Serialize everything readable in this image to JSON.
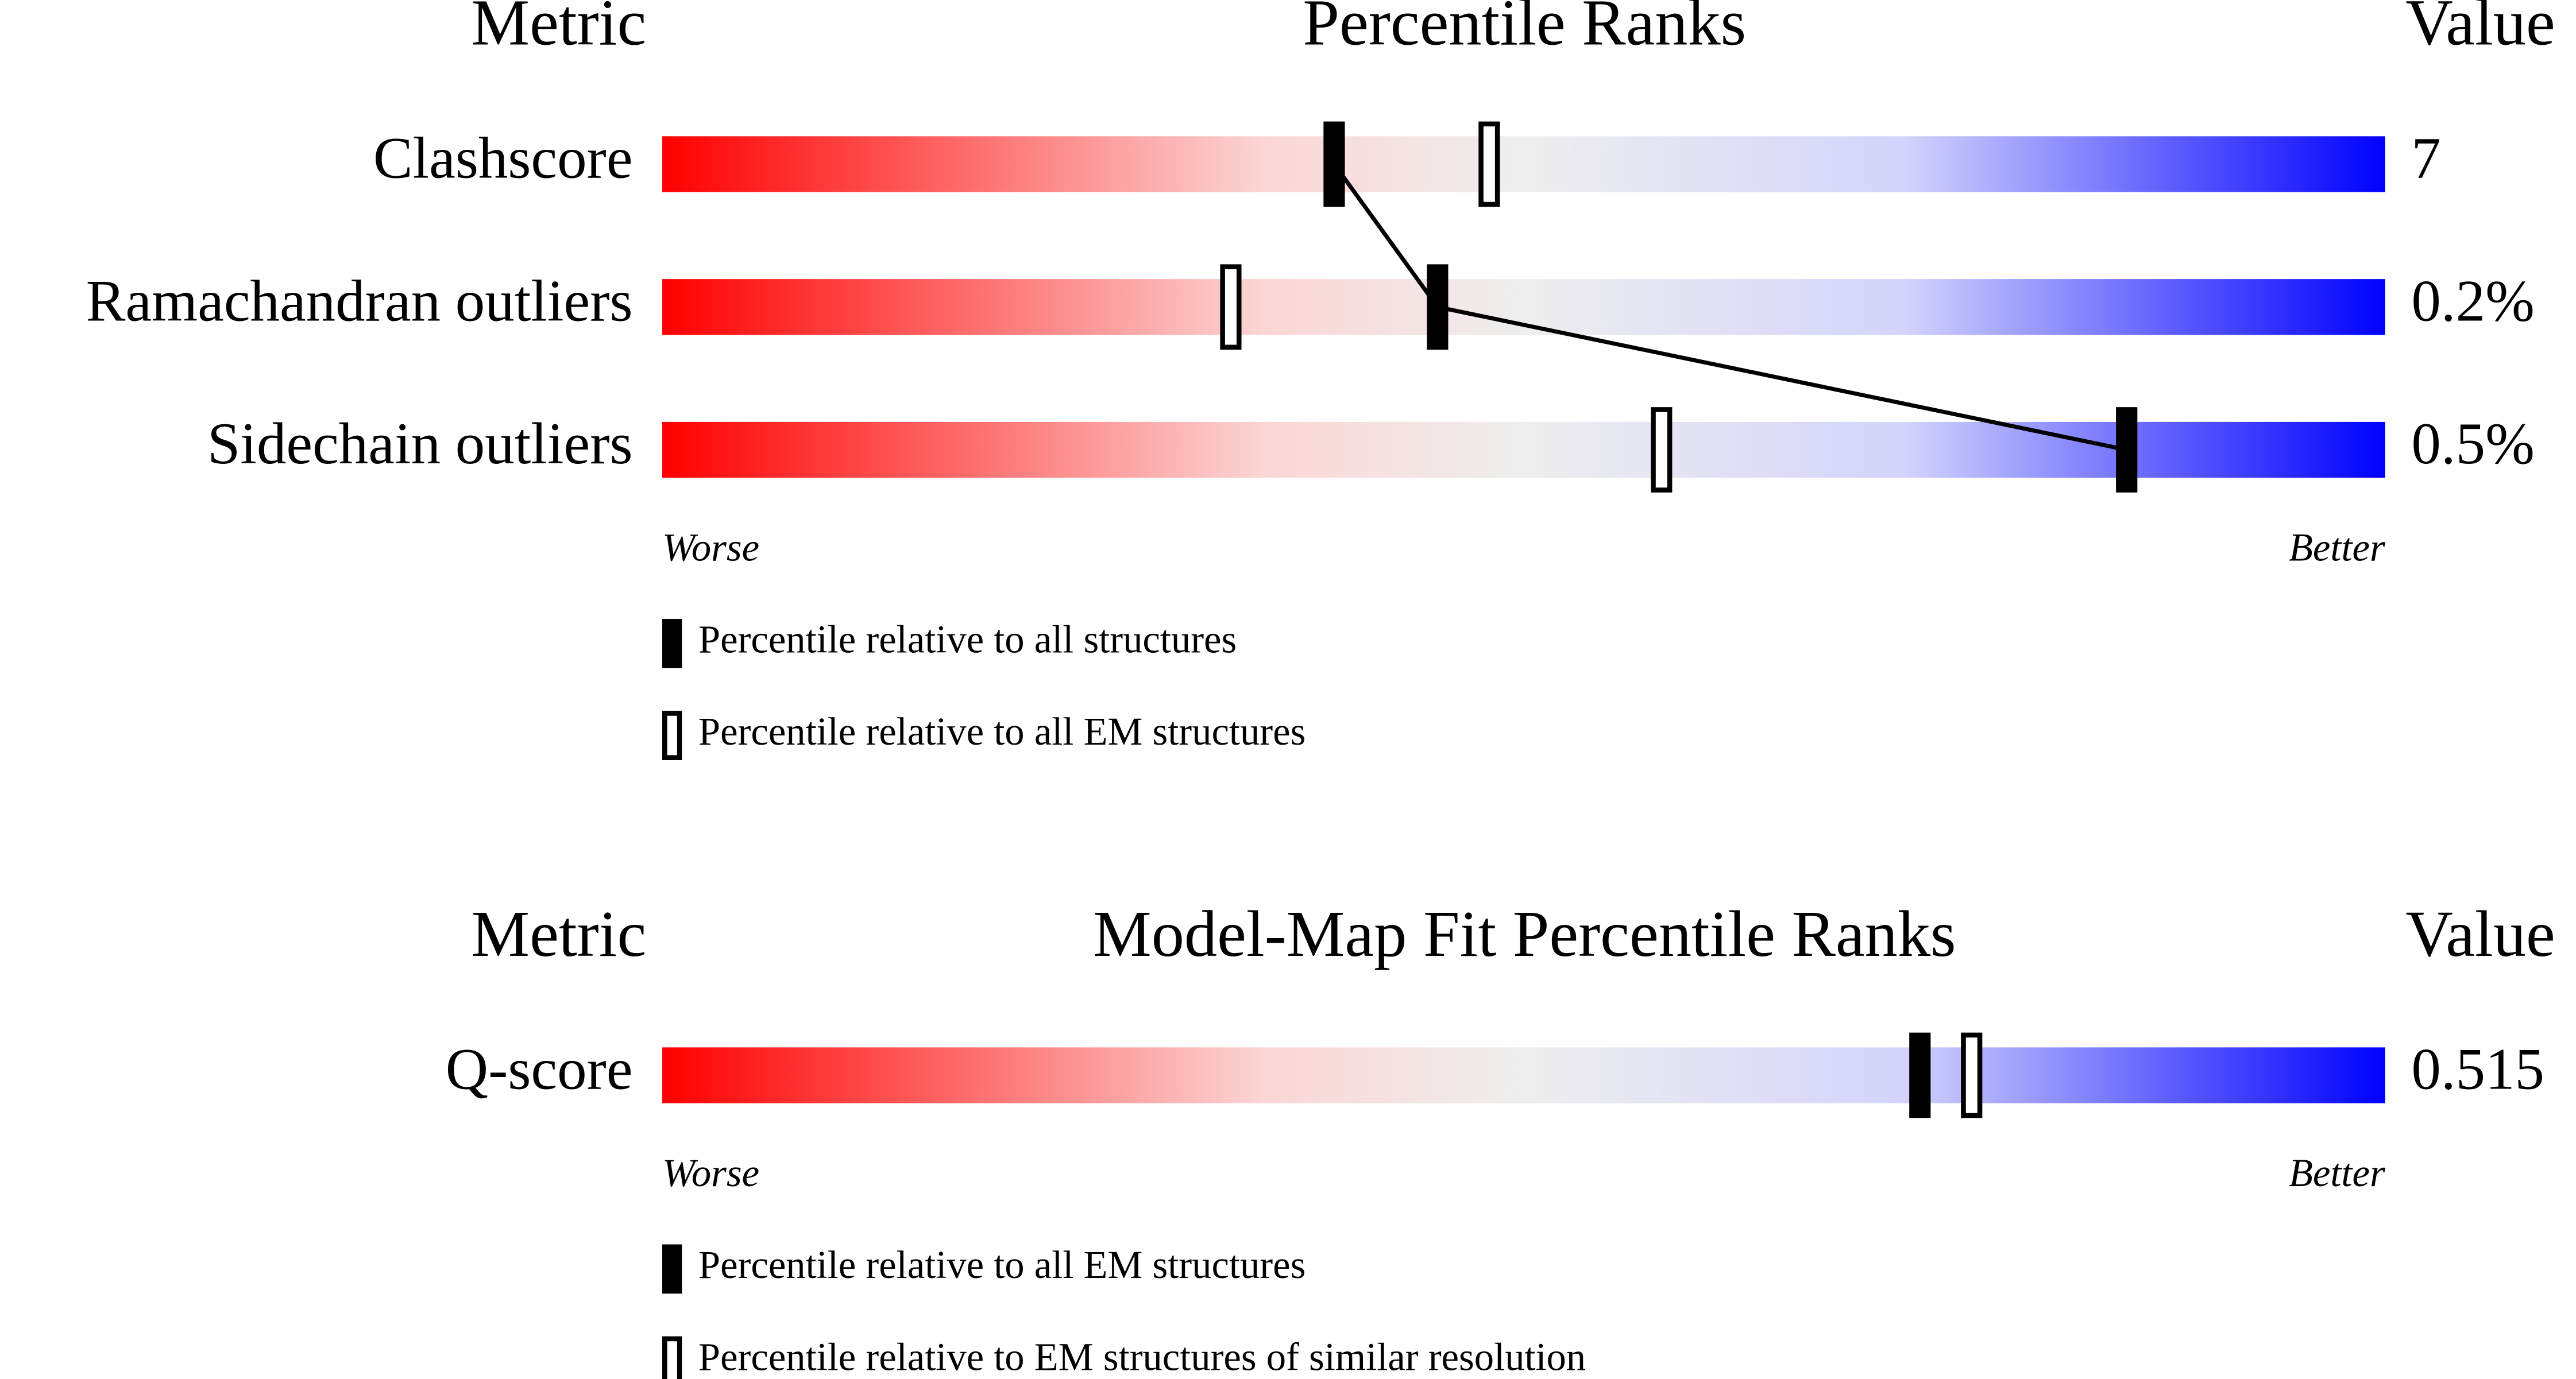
{
  "chart_data": [
    {
      "type": "percentile",
      "header": {
        "metric": "Metric",
        "title": "Percentile Ranks",
        "value": "Value"
      },
      "xlim": [
        0,
        100
      ],
      "metrics": [
        "Clashscore",
        "Ramachandran outliers",
        "Sidechain outliers"
      ],
      "metric_values": [
        "7",
        "0.2%",
        "0.5%"
      ],
      "low_label": "Worse",
      "high_label": "Better",
      "connect_series": 0,
      "series": [
        {
          "name": "Percentile relative to all structures",
          "color": "#000000",
          "filled": true,
          "values": [
            39,
            45,
            85
          ]
        },
        {
          "name": "Percentile relative to all EM structures",
          "color": "#000000",
          "filled": false,
          "values": [
            48,
            33,
            58
          ]
        }
      ]
    },
    {
      "type": "percentile",
      "header": {
        "metric": "Metric",
        "title": "Model-Map Fit Percentile Ranks",
        "value": "Value"
      },
      "xlim": [
        0,
        100
      ],
      "metrics": [
        "Q-score"
      ],
      "metric_values": [
        "0.515"
      ],
      "low_label": "Worse",
      "high_label": "Better",
      "series": [
        {
          "name": "Percentile relative to all EM structures",
          "color": "#000000",
          "filled": true,
          "values": [
            73
          ]
        },
        {
          "name": "Percentile relative to EM structures of similar resolution",
          "color": "#000000",
          "filled": false,
          "values": [
            76
          ]
        }
      ]
    }
  ]
}
